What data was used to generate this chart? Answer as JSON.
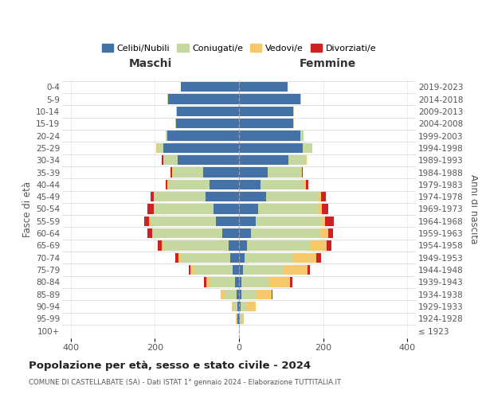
{
  "age_groups": [
    "100+",
    "95-99",
    "90-94",
    "85-89",
    "80-84",
    "75-79",
    "70-74",
    "65-69",
    "60-64",
    "55-59",
    "50-54",
    "45-49",
    "40-44",
    "35-39",
    "30-34",
    "25-29",
    "20-24",
    "15-19",
    "10-14",
    "5-9",
    "0-4"
  ],
  "birth_years": [
    "≤ 1923",
    "1924-1928",
    "1929-1933",
    "1934-1938",
    "1939-1943",
    "1944-1948",
    "1949-1953",
    "1954-1958",
    "1959-1963",
    "1964-1968",
    "1969-1973",
    "1974-1978",
    "1979-1983",
    "1984-1988",
    "1989-1993",
    "1994-1998",
    "1999-2003",
    "2004-2008",
    "2009-2013",
    "2014-2018",
    "2019-2023"
  ],
  "male": {
    "celibi": [
      0,
      3,
      4,
      6,
      10,
      15,
      20,
      25,
      40,
      55,
      60,
      80,
      70,
      85,
      145,
      180,
      170,
      150,
      148,
      168,
      138
    ],
    "coniugati": [
      0,
      3,
      8,
      28,
      58,
      92,
      118,
      155,
      165,
      155,
      140,
      120,
      98,
      72,
      33,
      14,
      5,
      2,
      2,
      2,
      0
    ],
    "vedovi": [
      0,
      2,
      5,
      10,
      10,
      8,
      5,
      3,
      2,
      3,
      2,
      2,
      2,
      2,
      2,
      2,
      0,
      0,
      0,
      0,
      0
    ],
    "divorziati": [
      0,
      0,
      0,
      0,
      5,
      5,
      8,
      10,
      10,
      12,
      15,
      8,
      5,
      4,
      3,
      0,
      0,
      0,
      0,
      0,
      0
    ]
  },
  "female": {
    "nubili": [
      0,
      2,
      3,
      5,
      5,
      10,
      14,
      18,
      28,
      40,
      46,
      65,
      52,
      68,
      118,
      152,
      145,
      128,
      128,
      145,
      115
    ],
    "coniugate": [
      0,
      4,
      15,
      35,
      65,
      95,
      112,
      152,
      165,
      155,
      142,
      122,
      102,
      78,
      40,
      20,
      8,
      3,
      3,
      3,
      0
    ],
    "vedove": [
      0,
      5,
      22,
      38,
      52,
      58,
      58,
      38,
      18,
      10,
      8,
      8,
      5,
      3,
      2,
      2,
      0,
      0,
      0,
      0,
      0
    ],
    "divorziate": [
      0,
      0,
      0,
      2,
      5,
      5,
      10,
      12,
      12,
      20,
      15,
      12,
      5,
      3,
      0,
      0,
      0,
      0,
      0,
      0,
      0
    ]
  },
  "colors": {
    "celibi": "#4472a8",
    "coniugati": "#c5d8a0",
    "vedovi": "#f5c96a",
    "divorziati": "#cc2222"
  },
  "xlim": 420,
  "title": "Popolazione per età, sesso e stato civile - 2024",
  "subtitle": "COMUNE DI CASTELLABATE (SA) - Dati ISTAT 1° gennaio 2024 - Elaborazione TUTTITALIA.IT",
  "xlabel_left": "Maschi",
  "xlabel_right": "Femmine",
  "ylabel_left": "Fasce di età",
  "ylabel_right": "Anni di nascita",
  "legend_labels": [
    "Celibi/Nubili",
    "Coniugati/e",
    "Vedovi/e",
    "Divorziati/e"
  ],
  "background_color": "#ffffff",
  "grid_color": "#cccccc"
}
